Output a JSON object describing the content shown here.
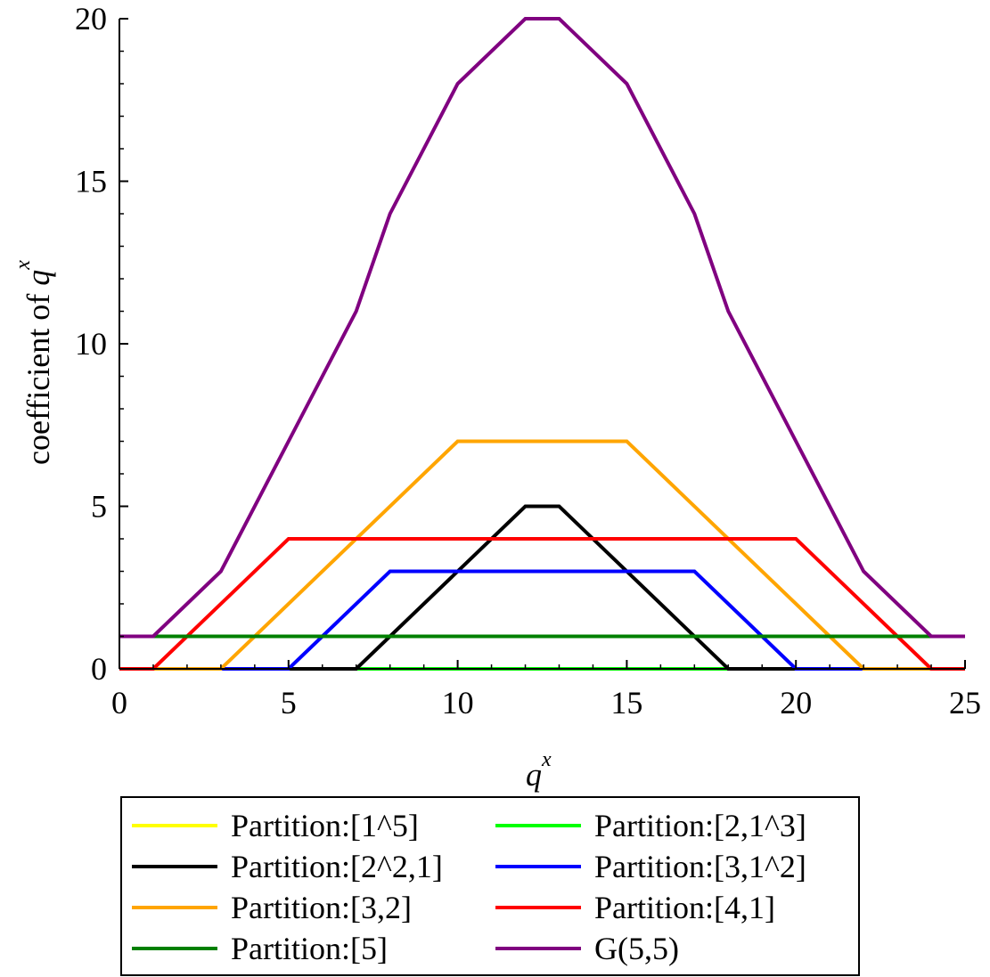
{
  "chart_data": {
    "type": "line",
    "xlabel": {
      "base": "q",
      "sup": "x"
    },
    "ylabel": {
      "text": "coefficient of ",
      "base": "q",
      "sup": "x"
    },
    "xlim": [
      0,
      25
    ],
    "ylim": [
      0,
      20
    ],
    "xticks": [
      0,
      5,
      10,
      15,
      20,
      25
    ],
    "yticks": [
      0,
      5,
      10,
      15,
      20
    ],
    "grid": false,
    "legend_position": "bottom",
    "series": [
      {
        "name": "Partition:[1^5]",
        "color": "#FFFF00",
        "x": [
          0,
          25
        ],
        "y": [
          0,
          0
        ]
      },
      {
        "name": "Partition:[2,1^3]",
        "color": "#00FF00",
        "x": [
          0,
          25
        ],
        "y": [
          0,
          0
        ]
      },
      {
        "name": "Partition:[2^2,1]",
        "color": "#000000",
        "x": [
          0,
          7,
          12,
          13,
          18,
          25
        ],
        "y": [
          0,
          0,
          5,
          5,
          0,
          0
        ]
      },
      {
        "name": "Partition:[3,1^2]",
        "color": "#0000FF",
        "x": [
          0,
          5,
          8,
          17,
          20,
          25
        ],
        "y": [
          0,
          0,
          3,
          3,
          0,
          0
        ]
      },
      {
        "name": "Partition:[3,2]",
        "color": "#FFA500",
        "x": [
          0,
          3,
          10,
          15,
          22,
          25
        ],
        "y": [
          0,
          0,
          7,
          7,
          0,
          0
        ]
      },
      {
        "name": "Partition:[4,1]",
        "color": "#FF0000",
        "x": [
          0,
          1,
          5,
          20,
          24,
          25
        ],
        "y": [
          0,
          0,
          4,
          4,
          0,
          0
        ]
      },
      {
        "name": "Partition:[5]",
        "color": "#008000",
        "x": [
          0,
          25
        ],
        "y": [
          1,
          1
        ]
      },
      {
        "name": "G(5,5)",
        "color": "#800080",
        "x": [
          0,
          1,
          3,
          5,
          7,
          8,
          10,
          12,
          13,
          15,
          17,
          18,
          20,
          22,
          24,
          25
        ],
        "y": [
          1,
          1,
          3,
          7,
          11,
          14,
          18,
          20,
          20,
          18,
          14,
          11,
          7,
          3,
          1,
          1
        ]
      }
    ]
  }
}
